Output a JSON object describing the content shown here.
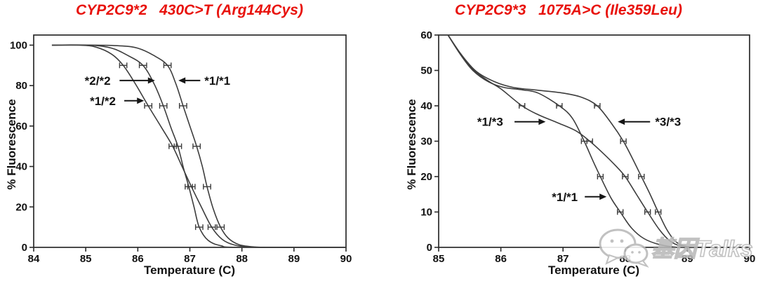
{
  "page": {
    "background": "#ffffff",
    "accent_red": "#e8120c",
    "curve_color": "#3d3d3d"
  },
  "watermark": {
    "text": "基因Talks",
    "color": "#b9b9b9",
    "icon": "chat-bubbles"
  },
  "chart_data": [
    {
      "type": "line",
      "title": "CYP2C9*2   430C>T (Arg144Cys)",
      "title_color": "#e8120c",
      "xlabel": "Temperature (C)",
      "ylabel": "% Fluorescence",
      "xlim": [
        84,
        90
      ],
      "ylim": [
        0,
        105
      ],
      "xticks": [
        84,
        85,
        86,
        87,
        88,
        89,
        90
      ],
      "yticks": [
        0,
        20,
        40,
        60,
        80,
        100
      ],
      "grid": false,
      "err_halfwidth": 0.07,
      "series": [
        {
          "name": "*1/*2",
          "points": [
            [
              84.35,
              100
            ],
            [
              84.9,
              100
            ],
            [
              85.2,
              99
            ],
            [
              85.5,
              95.5
            ],
            [
              85.72,
              90
            ],
            [
              85.95,
              81
            ],
            [
              86.2,
              70
            ],
            [
              86.45,
              59.5
            ],
            [
              86.67,
              50
            ],
            [
              86.85,
              40
            ],
            [
              87.03,
              30
            ],
            [
              87.22,
              20
            ],
            [
              87.42,
              10
            ],
            [
              87.62,
              4
            ],
            [
              87.85,
              1.2
            ],
            [
              88.15,
              0.2
            ],
            [
              88.5,
              0
            ],
            [
              90,
              0
            ]
          ]
        },
        {
          "name": "*2/*2",
          "points": [
            [
              84.35,
              100
            ],
            [
              85.1,
              100
            ],
            [
              85.5,
              98.5
            ],
            [
              85.8,
              95
            ],
            [
              86.1,
              90
            ],
            [
              86.32,
              80.5
            ],
            [
              86.49,
              70
            ],
            [
              86.64,
              59
            ],
            [
              86.77,
              50
            ],
            [
              86.88,
              39
            ],
            [
              86.98,
              30
            ],
            [
              87.08,
              20
            ],
            [
              87.18,
              10
            ],
            [
              87.35,
              3.5
            ],
            [
              87.6,
              0.8
            ],
            [
              87.95,
              0
            ],
            [
              90,
              0
            ]
          ]
        },
        {
          "name": "*1/*1",
          "points": [
            [
              84.35,
              100
            ],
            [
              85.2,
              100
            ],
            [
              85.7,
              99.6
            ],
            [
              86.0,
              98.5
            ],
            [
              86.3,
              95
            ],
            [
              86.57,
              90
            ],
            [
              86.73,
              81
            ],
            [
              86.87,
              70
            ],
            [
              87.0,
              60
            ],
            [
              87.13,
              50
            ],
            [
              87.24,
              40
            ],
            [
              87.33,
              30
            ],
            [
              87.45,
              19
            ],
            [
              87.59,
              10
            ],
            [
              87.74,
              4.5
            ],
            [
              87.95,
              1.3
            ],
            [
              88.25,
              0.2
            ],
            [
              88.6,
              0
            ],
            [
              90,
              0
            ]
          ]
        }
      ],
      "error_bars": [
        {
          "series": "*1/*2",
          "points": [
            [
              85.72,
              90
            ],
            [
              86.2,
              70
            ],
            [
              86.67,
              50
            ],
            [
              87.03,
              30
            ],
            [
              87.42,
              10
            ]
          ]
        },
        {
          "series": "*2/*2",
          "points": [
            [
              86.1,
              90
            ],
            [
              86.49,
              70
            ],
            [
              86.77,
              50
            ],
            [
              86.98,
              30
            ],
            [
              87.18,
              10
            ]
          ]
        },
        {
          "series": "*1/*1",
          "points": [
            [
              86.57,
              90
            ],
            [
              86.87,
              70
            ],
            [
              87.13,
              50
            ],
            [
              87.33,
              30
            ],
            [
              87.59,
              10
            ]
          ]
        }
      ],
      "annotations": [
        {
          "text": "*2/*2",
          "tx": 84.98,
          "ty": 82.5,
          "x1": 85.65,
          "x2": 86.33
        },
        {
          "text": "*1/*2",
          "tx": 85.08,
          "ty": 72.5,
          "x1": 85.74,
          "x2": 86.12
        },
        {
          "text": "*1/*1",
          "tx": 87.28,
          "ty": 82.5,
          "x1": 87.2,
          "x2": 86.78
        }
      ]
    },
    {
      "type": "line",
      "title": "CYP2C9*3   1075A>C (Ile359Leu)",
      "title_color": "#e8120c",
      "xlabel": "Temperature (C)",
      "ylabel": "% Fluorescence",
      "xlim": [
        85,
        90
      ],
      "ylim": [
        0,
        60
      ],
      "xticks": [
        85,
        86,
        87,
        88,
        89,
        90
      ],
      "yticks": [
        0,
        10,
        20,
        30,
        40,
        50,
        60
      ],
      "grid": false,
      "err_halfwidth": 0.045,
      "series": [
        {
          "name": "*1/*3",
          "points": [
            [
              85.15,
              60
            ],
            [
              85.35,
              54.8
            ],
            [
              85.55,
              50.3
            ],
            [
              85.8,
              47
            ],
            [
              86.0,
              44.8
            ],
            [
              86.34,
              40
            ],
            [
              86.6,
              37.5
            ],
            [
              86.9,
              35.3
            ],
            [
              87.2,
              33
            ],
            [
              87.43,
              30
            ],
            [
              87.65,
              26.5
            ],
            [
              87.85,
              23
            ],
            [
              88.0,
              20
            ],
            [
              88.18,
              15
            ],
            [
              88.36,
              10
            ],
            [
              88.55,
              5
            ],
            [
              88.72,
              1.8
            ],
            [
              88.9,
              0.3
            ],
            [
              89.1,
              0
            ],
            [
              90,
              0
            ]
          ]
        },
        {
          "name": "*1/*1",
          "points": [
            [
              85.15,
              60
            ],
            [
              85.35,
              54.5
            ],
            [
              85.55,
              50
            ],
            [
              85.8,
              46.8
            ],
            [
              86.05,
              45.2
            ],
            [
              86.35,
              44.5
            ],
            [
              86.6,
              43.6
            ],
            [
              86.94,
              40
            ],
            [
              87.15,
              36.5
            ],
            [
              87.34,
              30
            ],
            [
              87.48,
              24.5
            ],
            [
              87.6,
              20
            ],
            [
              87.77,
              14
            ],
            [
              87.92,
              10
            ],
            [
              88.1,
              5.5
            ],
            [
              88.3,
              2.5
            ],
            [
              88.55,
              0.8
            ],
            [
              88.85,
              0
            ],
            [
              89.3,
              0
            ],
            [
              90,
              0
            ]
          ]
        },
        {
          "name": "*3/*3",
          "points": [
            [
              85.15,
              60
            ],
            [
              85.35,
              54.8
            ],
            [
              85.6,
              49.8
            ],
            [
              85.9,
              46.8
            ],
            [
              86.2,
              45.2
            ],
            [
              86.6,
              44.4
            ],
            [
              87.0,
              43.6
            ],
            [
              87.3,
              42.4
            ],
            [
              87.55,
              40
            ],
            [
              87.78,
              35
            ],
            [
              87.97,
              30
            ],
            [
              88.12,
              25
            ],
            [
              88.26,
              20
            ],
            [
              88.4,
              15
            ],
            [
              88.53,
              10
            ],
            [
              88.67,
              5
            ],
            [
              88.82,
              1.5
            ],
            [
              89.0,
              0.2
            ],
            [
              89.3,
              0
            ],
            [
              90,
              0
            ]
          ]
        }
      ],
      "error_bars": [
        {
          "series": "*1/*3",
          "points": [
            [
              86.34,
              40
            ],
            [
              87.43,
              30
            ],
            [
              88.0,
              20
            ],
            [
              88.36,
              10
            ]
          ]
        },
        {
          "series": "*1/*1",
          "points": [
            [
              86.94,
              40
            ],
            [
              87.34,
              30
            ],
            [
              87.6,
              20
            ],
            [
              87.92,
              10
            ]
          ]
        },
        {
          "series": "*3/*3",
          "points": [
            [
              87.55,
              40
            ],
            [
              87.97,
              30
            ],
            [
              88.26,
              20
            ],
            [
              88.53,
              10
            ]
          ]
        }
      ],
      "annotations": [
        {
          "text": "*1/*3",
          "tx": 85.62,
          "ty": 35.5,
          "x1": 86.22,
          "x2": 86.72
        },
        {
          "text": "*3/*3",
          "tx": 88.48,
          "ty": 35.5,
          "x1": 88.4,
          "x2": 87.88
        },
        {
          "text": "*1/*1",
          "tx": 86.82,
          "ty": 14.3,
          "x1": 87.35,
          "x2": 87.7
        }
      ]
    }
  ]
}
